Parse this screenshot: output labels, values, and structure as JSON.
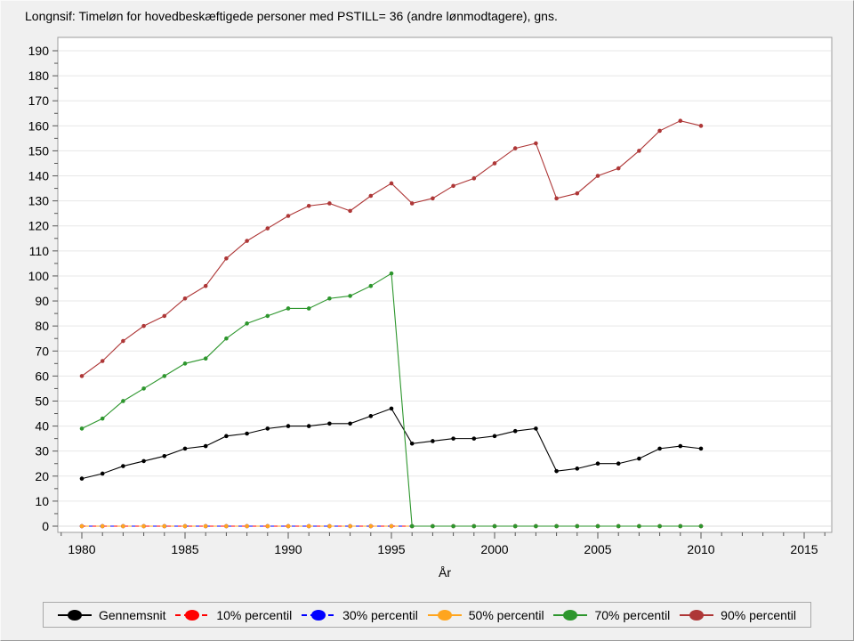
{
  "title": "Longnsif: Timeløn for hovedbeskæftigede personer med PSTILL= 36 (andre lønmodtagere), gns.",
  "chart_data": {
    "type": "line",
    "x_label": "År",
    "x": [
      1980,
      1981,
      1982,
      1983,
      1984,
      1985,
      1986,
      1987,
      1988,
      1989,
      1990,
      1991,
      1992,
      1993,
      1994,
      1995,
      1996,
      1997,
      1998,
      1999,
      2000,
      2001,
      2002,
      2003,
      2004,
      2005,
      2006,
      2007,
      2008,
      2009,
      2010
    ],
    "x_ticks_major": [
      1980,
      1985,
      1990,
      1995,
      2000,
      2005,
      2010,
      2015
    ],
    "x_minor_range": [
      1979,
      2016
    ],
    "y_ticks_major": [
      0,
      10,
      20,
      30,
      40,
      50,
      60,
      70,
      80,
      90,
      100,
      110,
      120,
      130,
      140,
      150,
      160,
      170,
      180,
      190
    ],
    "y_ticks_minor_step": 5,
    "ylim": [
      0,
      190
    ],
    "grid": "horizontal",
    "legend_position": "bottom",
    "background": "#f0f0f0",
    "plot_background": "#ffffff",
    "grid_color": "#e7e7e7",
    "series": [
      {
        "name": "Gennemsnit",
        "color": "#000000",
        "line_dash": "none",
        "dash_offset": 0,
        "legend_dash": "solid",
        "values": [
          19,
          21,
          24,
          26,
          28,
          31,
          32,
          36,
          37,
          39,
          40,
          40,
          41,
          41,
          44,
          47,
          33,
          34,
          35,
          35,
          36,
          38,
          39,
          22,
          23,
          25,
          25,
          27,
          31,
          32,
          31
        ]
      },
      {
        "name": "10% percentil",
        "color": "#ff0000",
        "line_dash": "4 8",
        "dash_offset": 0,
        "legend_dash": "dashed",
        "values": [
          0,
          0,
          0,
          0,
          0,
          0,
          0,
          0,
          0,
          0,
          0,
          0,
          0,
          0,
          0,
          0,
          0,
          0,
          0,
          0,
          0,
          0,
          0,
          0,
          0,
          0,
          0,
          0,
          0,
          0,
          0
        ]
      },
      {
        "name": "30% percentil",
        "color": "#0000ff",
        "line_dash": "4 8",
        "dash_offset": 4,
        "legend_dash": "dashed",
        "values": [
          0,
          0,
          0,
          0,
          0,
          0,
          0,
          0,
          0,
          0,
          0,
          0,
          0,
          0,
          0,
          0,
          0,
          0,
          0,
          0,
          0,
          0,
          0,
          0,
          0,
          0,
          0,
          0,
          0,
          0,
          0
        ]
      },
      {
        "name": "50% percentil",
        "color": "#ffa51e",
        "line_dash": "4 8",
        "dash_offset": 8,
        "legend_dash": "solid",
        "values": [
          0,
          0,
          0,
          0,
          0,
          0,
          0,
          0,
          0,
          0,
          0,
          0,
          0,
          0,
          0,
          0,
          0,
          0,
          0,
          0,
          0,
          0,
          0,
          0,
          0,
          0,
          0,
          0,
          0,
          0,
          0
        ]
      },
      {
        "name": "70% percentil",
        "color": "#2d962d",
        "line_dash": "none",
        "dash_offset": 0,
        "legend_dash": "solid",
        "values": [
          39,
          43,
          50,
          55,
          60,
          65,
          67,
          75,
          81,
          84,
          87,
          87,
          91,
          92,
          96,
          101,
          0,
          0,
          0,
          0,
          0,
          0,
          0,
          0,
          0,
          0,
          0,
          0,
          0,
          0,
          0
        ]
      },
      {
        "name": "90% percentil",
        "color": "#ae3737",
        "line_dash": "none",
        "dash_offset": 0,
        "legend_dash": "solid",
        "values": [
          60,
          66,
          74,
          80,
          84,
          91,
          96,
          107,
          114,
          119,
          124,
          128,
          129,
          126,
          132,
          137,
          129,
          131,
          136,
          139,
          145,
          151,
          153,
          131,
          133,
          140,
          143,
          150,
          158,
          162,
          160
        ]
      }
    ]
  }
}
